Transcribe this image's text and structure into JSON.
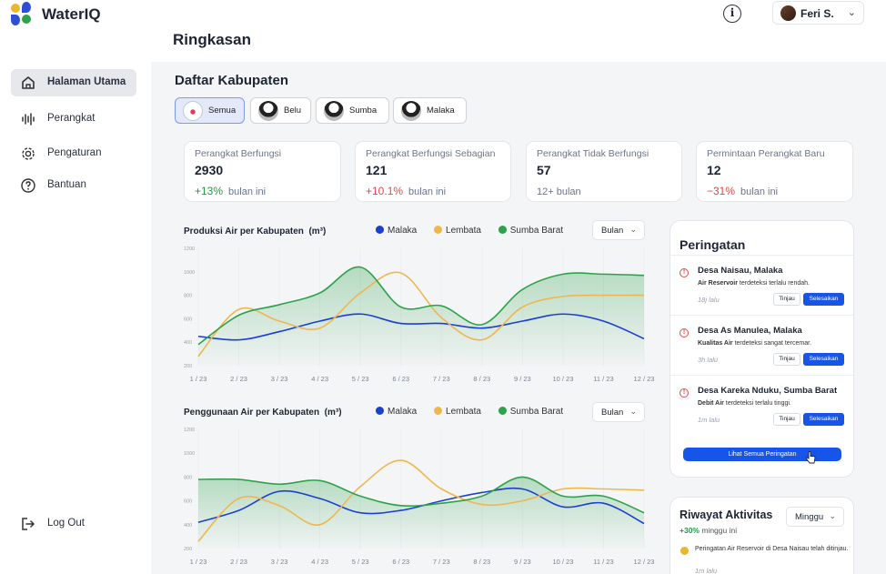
{
  "app": {
    "name": "WaterIQ"
  },
  "user": {
    "name": "Feri S."
  },
  "sidebar": {
    "items": [
      {
        "label": "Halaman Utama"
      },
      {
        "label": "Perangkat"
      },
      {
        "label": "Pengaturan"
      },
      {
        "label": "Bantuan"
      }
    ],
    "logout": "Log Out"
  },
  "page": {
    "title": "Ringkasan",
    "section": "Daftar Kabupaten"
  },
  "regions": [
    "Semua",
    "Belu",
    "Sumba",
    "Malaka"
  ],
  "stats": [
    {
      "title": "Perangkat Berfungsi",
      "value": "2930",
      "change": "+13%",
      "period": "bulan ini",
      "color": "#1e9a44"
    },
    {
      "title": "Perangkat Berfungsi Sebagian",
      "value": "121",
      "change": "+10.1%",
      "period": "bulan ini",
      "color": "#e04848"
    },
    {
      "title": "Perangkat Tidak Berfungsi",
      "value": "57",
      "change": "",
      "period": "12+ bulan",
      "color": "#6b7488"
    },
    {
      "title": "Permintaan Perangkat Baru",
      "value": "12",
      "change": "−31%",
      "period": "bulan ini",
      "color": "#e04848"
    }
  ],
  "colors": {
    "Malaka": "#1a3fd1",
    "Lembata": "#f0b64e",
    "Sumba Barat": "#2ea24a",
    "accent": "#1655e8"
  },
  "chart_data": [
    {
      "type": "line",
      "title": "Produksi Air per Kabupaten",
      "unit": "(m³)",
      "period": "Bulan",
      "x": [
        "1 / 23",
        "2 / 23",
        "3 / 23",
        "4 / 23",
        "5 / 23",
        "6 / 23",
        "7 / 23",
        "8 / 23",
        "9 / 23",
        "10 / 23",
        "11 / 23",
        "12 / 23"
      ],
      "ylim": [
        200,
        1200
      ],
      "yticks": [
        200,
        400,
        600,
        800,
        1000,
        1200
      ],
      "grid": true,
      "series": [
        {
          "name": "Malaka",
          "values": [
            450,
            420,
            490,
            580,
            640,
            560,
            560,
            520,
            580,
            640,
            580,
            430
          ]
        },
        {
          "name": "Lembata",
          "values": [
            280,
            680,
            580,
            520,
            820,
            990,
            610,
            420,
            700,
            790,
            800,
            800
          ]
        },
        {
          "name": "Sumba Barat",
          "values": [
            380,
            630,
            720,
            820,
            1040,
            700,
            710,
            550,
            850,
            980,
            980,
            970
          ]
        }
      ]
    },
    {
      "type": "line",
      "title": "Penggunaan Air per Kabupaten",
      "unit": "(m³)",
      "period": "Bulan",
      "x": [
        "1 / 23",
        "2 / 23",
        "3 / 23",
        "4 / 23",
        "5 / 23",
        "6 / 23",
        "7 / 23",
        "8 / 23",
        "9 / 23",
        "10 / 23",
        "11 / 23",
        "12 / 23"
      ],
      "ylim": [
        200,
        1200
      ],
      "yticks": [
        200,
        400,
        600,
        800,
        1000,
        1200
      ],
      "grid": true,
      "series": [
        {
          "name": "Malaka",
          "values": [
            420,
            520,
            680,
            620,
            500,
            520,
            600,
            670,
            700,
            550,
            580,
            410
          ]
        },
        {
          "name": "Lembata",
          "values": [
            260,
            620,
            560,
            400,
            720,
            940,
            700,
            570,
            600,
            700,
            700,
            690
          ]
        },
        {
          "name": "Sumba Barat",
          "values": [
            780,
            780,
            740,
            770,
            640,
            560,
            580,
            640,
            800,
            640,
            640,
            500
          ]
        }
      ]
    }
  ],
  "alerts": {
    "title": "Peringatan",
    "items": [
      {
        "location": "Desa Naisau, Malaka",
        "subject": "Air Reservoir",
        "message": "terdeteksi terlalu rendah.",
        "time": "18j lalu"
      },
      {
        "location": "Desa As Manulea, Malaka",
        "subject": "Kualitas Air",
        "message": "terdeteksi sangat tercemar.",
        "time": "3h lalu"
      },
      {
        "location": "Desa Kareka Nduku, Sumba Barat",
        "subject": "Debit Air",
        "message": "terdeteksi terlalu tinggi.",
        "time": "1m lalu"
      }
    ],
    "review_label": "Tinjau",
    "done_label": "Selesaikan",
    "view_all": "Lihat Semua Peringatan"
  },
  "activity": {
    "title": "Riwayat Aktivitas",
    "period": "Minggu",
    "change": "+30%",
    "change_period": "minggu ini",
    "item": "Peringatan Air Reservoir di Desa Naisau telah ditinjau.",
    "item_time": "1m lalu"
  }
}
